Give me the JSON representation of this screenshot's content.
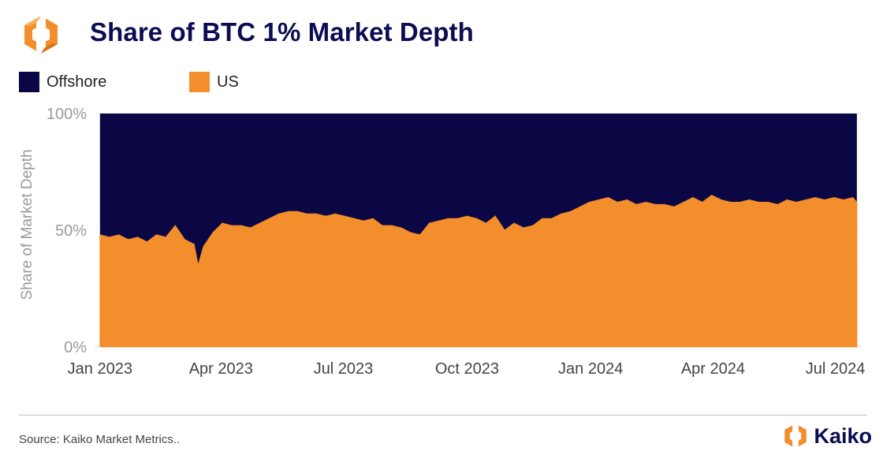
{
  "header": {
    "title": "Share of BTC 1% Market Depth",
    "logo_icon": "kaiko-hexagon-logo-icon"
  },
  "legend": [
    {
      "label": "Offshore",
      "color": "#0b0745"
    },
    {
      "label": "US",
      "color": "#f28e2b"
    }
  ],
  "footer": {
    "source": "Source: Kaiko Market Metrics..",
    "brand": "Kaiko",
    "brand_icon": "kaiko-hexagon-logo-icon"
  },
  "chart_data": {
    "type": "area",
    "stacked": true,
    "normalized": true,
    "title": "Share of BTC 1% Market Depth",
    "xlabel": "",
    "ylabel": "Share of Market Depth",
    "ylim": [
      0,
      100
    ],
    "yticks": [
      0,
      50,
      100
    ],
    "ytick_labels": [
      "0%",
      "50%",
      "100%"
    ],
    "xlim": [
      "2022-12-28",
      "2024-07-20"
    ],
    "xtick_labels": [
      {
        "date": "2023-01-01",
        "label": "Jan 2023"
      },
      {
        "date": "2023-04-01",
        "label": "Apr 2023"
      },
      {
        "date": "2023-07-01",
        "label": "Jul 2023"
      },
      {
        "date": "2023-10-01",
        "label": "Oct 2023"
      },
      {
        "date": "2024-01-01",
        "label": "Jan 2024"
      },
      {
        "date": "2024-04-01",
        "label": "Apr 2024"
      },
      {
        "date": "2024-07-01",
        "label": "Jul 2024"
      }
    ],
    "grid": true,
    "legend_position": "top-left",
    "series": [
      {
        "name": "US",
        "color": "#f28e2b",
        "x": [
          "2023-01-01",
          "2023-01-08",
          "2023-01-15",
          "2023-01-22",
          "2023-01-29",
          "2023-02-05",
          "2023-02-12",
          "2023-02-19",
          "2023-02-26",
          "2023-03-05",
          "2023-03-12",
          "2023-03-15",
          "2023-03-19",
          "2023-03-26",
          "2023-04-02",
          "2023-04-09",
          "2023-04-16",
          "2023-04-23",
          "2023-04-30",
          "2023-05-07",
          "2023-05-14",
          "2023-05-21",
          "2023-05-28",
          "2023-06-04",
          "2023-06-11",
          "2023-06-18",
          "2023-06-25",
          "2023-07-02",
          "2023-07-09",
          "2023-07-16",
          "2023-07-23",
          "2023-07-30",
          "2023-08-06",
          "2023-08-13",
          "2023-08-20",
          "2023-08-27",
          "2023-09-03",
          "2023-09-10",
          "2023-09-17",
          "2023-09-24",
          "2023-10-01",
          "2023-10-08",
          "2023-10-15",
          "2023-10-22",
          "2023-10-29",
          "2023-11-05",
          "2023-11-12",
          "2023-11-19",
          "2023-11-26",
          "2023-12-03",
          "2023-12-10",
          "2023-12-17",
          "2023-12-24",
          "2023-12-31",
          "2024-01-07",
          "2024-01-14",
          "2024-01-21",
          "2024-01-28",
          "2024-02-04",
          "2024-02-11",
          "2024-02-18",
          "2024-02-25",
          "2024-03-03",
          "2024-03-10",
          "2024-03-17",
          "2024-03-24",
          "2024-03-31",
          "2024-04-07",
          "2024-04-14",
          "2024-04-21",
          "2024-04-28",
          "2024-05-05",
          "2024-05-12",
          "2024-05-19",
          "2024-05-26",
          "2024-06-02",
          "2024-06-09",
          "2024-06-16",
          "2024-06-23",
          "2024-06-30",
          "2024-07-07",
          "2024-07-14",
          "2024-07-17"
        ],
        "values": [
          48,
          47,
          48,
          46,
          47,
          45,
          48,
          47,
          52,
          46,
          44,
          35,
          43,
          49,
          53,
          52,
          52,
          51,
          53,
          55,
          57,
          58,
          58,
          57,
          57,
          56,
          57,
          56,
          55,
          54,
          55,
          52,
          52,
          51,
          49,
          48,
          53,
          54,
          55,
          55,
          56,
          55,
          53,
          56,
          50,
          53,
          51,
          52,
          55,
          55,
          57,
          58,
          60,
          62,
          63,
          64,
          62,
          63,
          61,
          62,
          61,
          61,
          60,
          62,
          64,
          62,
          65,
          63,
          62,
          62,
          63,
          62,
          62,
          61,
          63,
          62,
          63,
          64,
          63,
          64,
          63,
          64,
          62
        ]
      },
      {
        "name": "Offshore",
        "color": "#0b0745",
        "x": [
          "2023-01-01",
          "2024-07-17"
        ],
        "values": "remainder to 100%"
      }
    ]
  }
}
